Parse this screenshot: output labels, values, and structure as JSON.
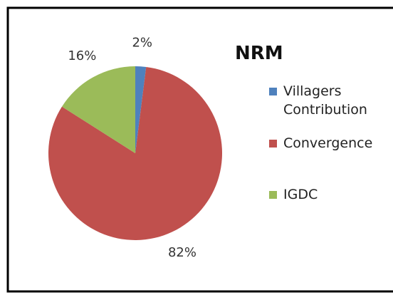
{
  "chart_data": {
    "type": "pie",
    "title": "NRM",
    "categories": [
      "Villagers Contribution",
      "Convergence",
      "IGDC"
    ],
    "values": [
      2,
      82,
      16
    ],
    "value_labels": [
      "2%",
      "82%",
      "16%"
    ],
    "colors": [
      "#4f81bd",
      "#c0504d",
      "#9bbb59"
    ],
    "legend": "right"
  }
}
